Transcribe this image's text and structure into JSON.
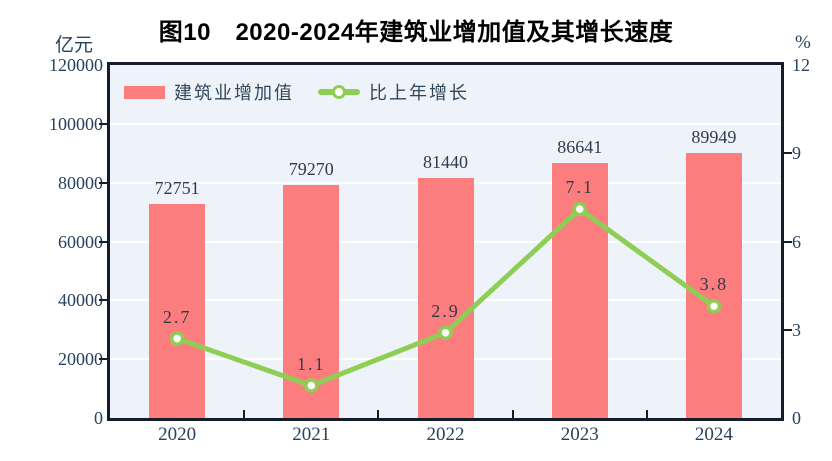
{
  "title": "图10　2020-2024年建筑业增加值及其增长速度",
  "left_axis_unit": "亿元",
  "right_axis_unit": "%",
  "legend": {
    "bar_label": "建筑业增加值",
    "line_label": "比上年增长"
  },
  "colors": {
    "bar": "#fb7d7d",
    "line": "#8fce54",
    "marker_fill": "#ffffff",
    "plot_background": "#edf3f8",
    "gridline": "#ffffff",
    "axis_frame": "#141d29",
    "axis_text": "#27425e",
    "data_label_text": "#2e3c4e",
    "title_text": "#000000"
  },
  "chart_data": {
    "type": "combo",
    "categories": [
      "2020",
      "2021",
      "2022",
      "2023",
      "2024"
    ],
    "series": [
      {
        "name": "建筑业增加值",
        "type": "bar",
        "axis": "left",
        "color": "#fb7d7d",
        "values": [
          72751,
          79270,
          81440,
          86641,
          89949
        ]
      },
      {
        "name": "比上年增长",
        "type": "line",
        "axis": "right",
        "color": "#8fce54",
        "values": [
          2.7,
          1.1,
          2.9,
          7.1,
          3.8
        ]
      }
    ],
    "left_axis": {
      "label": "亿元",
      "min": 0,
      "max": 120000,
      "step": 20000,
      "tick_labels": [
        "120000",
        "100000",
        "80000",
        "60000",
        "40000",
        "20000",
        "0"
      ]
    },
    "right_axis": {
      "label": "%",
      "min": 0,
      "max": 12,
      "step": 3,
      "tick_labels": [
        "12",
        "9",
        "6",
        "3",
        "0"
      ]
    },
    "grid": true,
    "legend_position": "top-left",
    "plot_bg": "#edf3f8"
  }
}
